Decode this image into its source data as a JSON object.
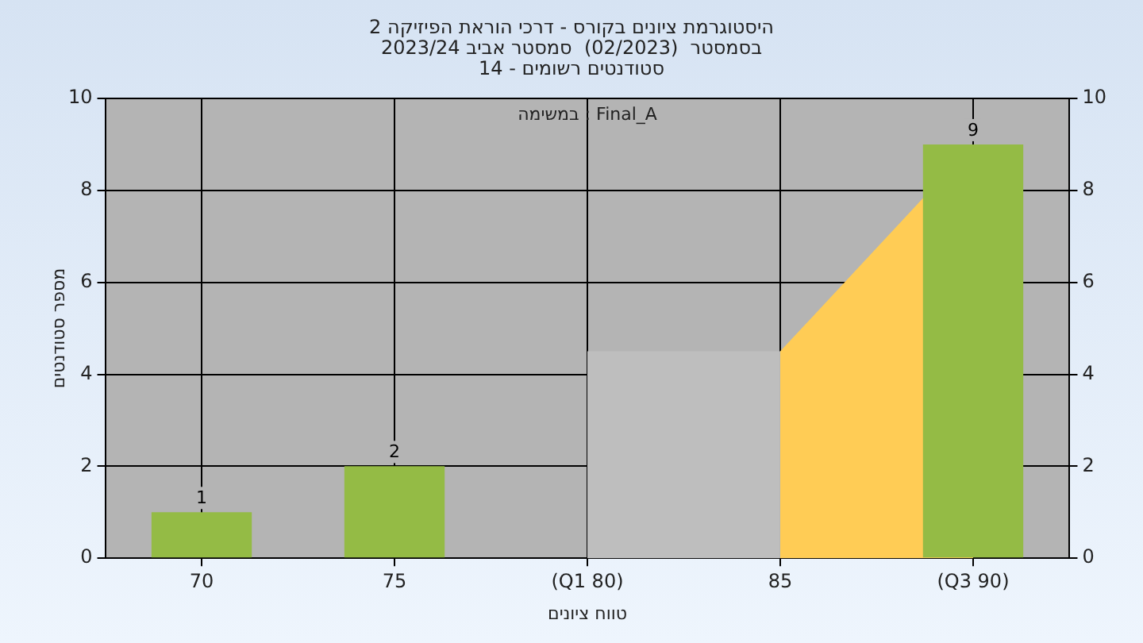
{
  "chart_data": {
    "type": "bar",
    "title": "היסטוגרמת ציונים בקורס - דרכי הוראת הפיזיקה 2",
    "subtitle": "בסמסטר  (02/2023)  סמסטר אביב 2023/24\nסטודנטים רשומים - 14",
    "xlabel": "טווח ציונים",
    "ylabel": "מספר סטודנטים",
    "annotations": [
      "במשימה : Final_A"
    ],
    "categories": [
      "70",
      "75",
      "(Q1 80)",
      "85",
      "(Q3 90)"
    ],
    "series": [
      {
        "type": "area",
        "color": "#bebebe",
        "values": [
          null,
          null,
          4.5,
          4.5,
          null
        ]
      },
      {
        "type": "area",
        "color": "#ffcc55",
        "values": [
          null,
          null,
          null,
          4.5,
          9
        ]
      },
      {
        "type": "bar",
        "color": "#94bb45",
        "values": [
          1,
          2,
          0,
          0,
          9
        ],
        "value_labels": [
          "1",
          "2",
          null,
          null,
          "9"
        ]
      }
    ],
    "ylim": [
      0,
      10
    ],
    "yticks": [
      0,
      2,
      4,
      6,
      8,
      10
    ],
    "y2lim": [
      0,
      10
    ],
    "y2ticks": [
      0,
      2,
      4,
      6,
      8,
      10
    ],
    "grid": true,
    "legend": false
  }
}
